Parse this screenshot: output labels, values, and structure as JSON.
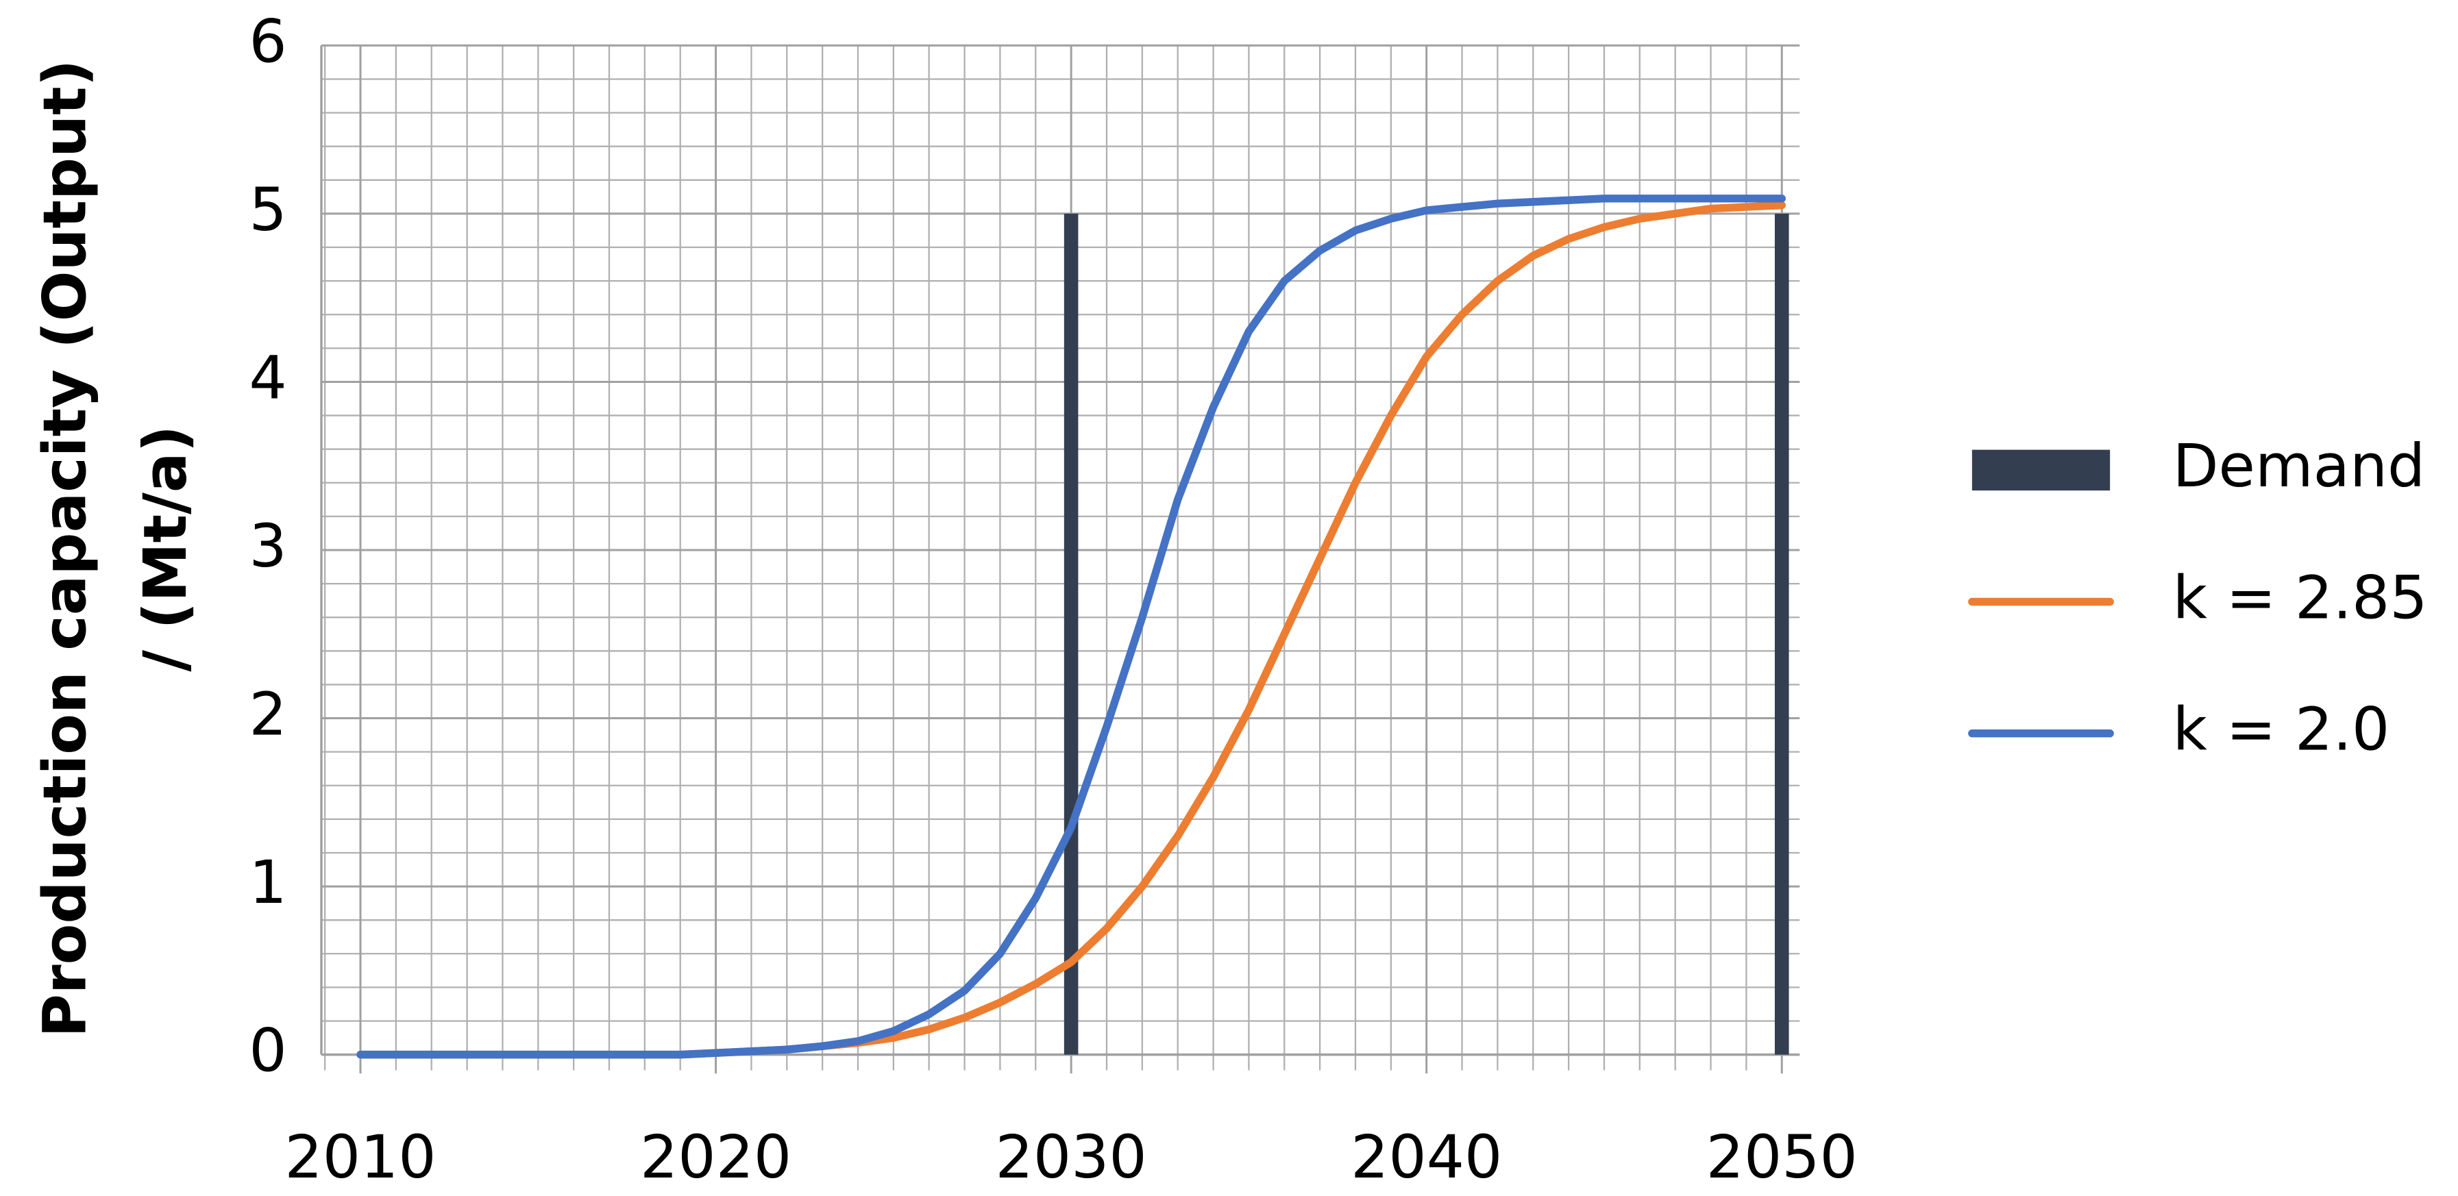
{
  "chart_data": {
    "type": "line",
    "ylabel": [
      "Production capacity (Output)",
      "/ (Mt/a)"
    ],
    "x": [
      2010,
      2011,
      2012,
      2013,
      2014,
      2015,
      2016,
      2017,
      2018,
      2019,
      2020,
      2021,
      2022,
      2023,
      2024,
      2025,
      2026,
      2027,
      2028,
      2029,
      2030,
      2031,
      2032,
      2033,
      2034,
      2035,
      2036,
      2037,
      2038,
      2039,
      2040,
      2041,
      2042,
      2043,
      2044,
      2045,
      2046,
      2047,
      2048,
      2049,
      2050
    ],
    "series": [
      {
        "name": "Demand",
        "type": "bar",
        "color": "#333f50",
        "x": [
          2030,
          2050
        ],
        "values": [
          5,
          5
        ]
      },
      {
        "name": "k = 2.85",
        "type": "line",
        "color": "#ed7d31",
        "values": [
          0,
          0,
          0,
          0,
          0,
          0,
          0,
          0,
          0,
          0,
          0.01,
          0.02,
          0.03,
          0.05,
          0.07,
          0.1,
          0.15,
          0.22,
          0.31,
          0.42,
          0.55,
          0.75,
          1.0,
          1.3,
          1.65,
          2.05,
          2.5,
          2.95,
          3.4,
          3.8,
          4.15,
          4.4,
          4.6,
          4.75,
          4.85,
          4.92,
          4.97,
          5.0,
          5.03,
          5.04,
          5.05
        ]
      },
      {
        "name": "k = 2.0",
        "type": "line",
        "color": "#4472c4",
        "values": [
          0,
          0,
          0,
          0,
          0,
          0,
          0,
          0,
          0,
          0,
          0.01,
          0.02,
          0.03,
          0.05,
          0.08,
          0.14,
          0.24,
          0.38,
          0.6,
          0.93,
          1.35,
          1.95,
          2.6,
          3.3,
          3.85,
          4.3,
          4.6,
          4.78,
          4.9,
          4.97,
          5.02,
          5.04,
          5.06,
          5.07,
          5.08,
          5.09,
          5.09,
          5.09,
          5.09,
          5.09,
          5.09
        ]
      }
    ],
    "xlim": [
      2008.9,
      2050.5
    ],
    "xticks": [
      2010,
      2020,
      2030,
      2040,
      2050
    ],
    "ylim": [
      0,
      6
    ],
    "yticks": [
      0,
      1,
      2,
      3,
      4,
      5,
      6
    ],
    "grid": true,
    "legend": "right"
  }
}
